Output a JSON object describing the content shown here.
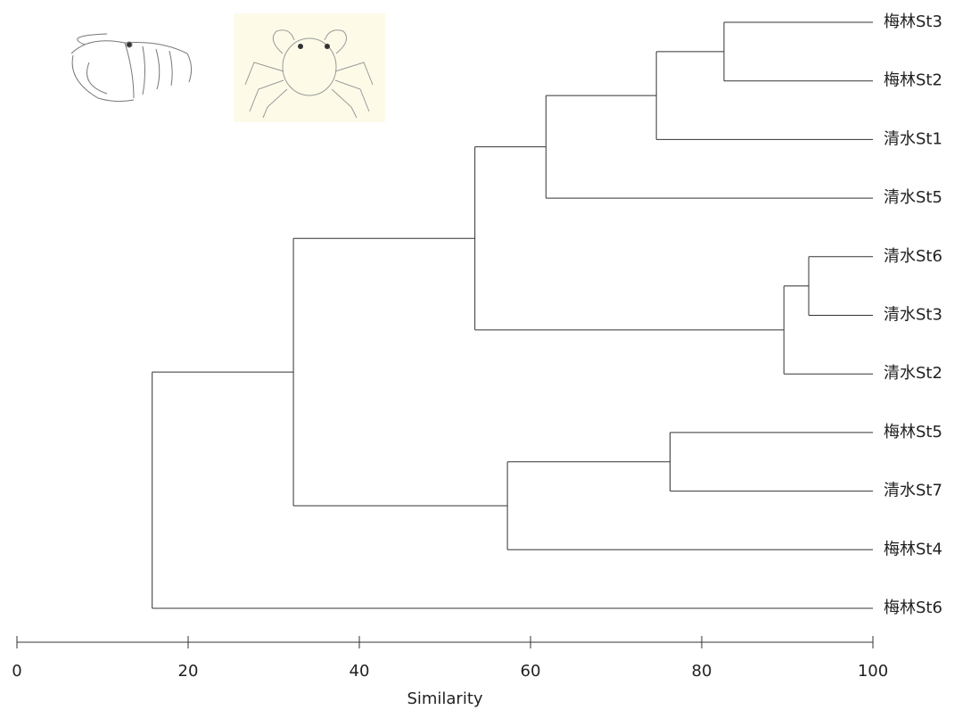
{
  "chart_data": {
    "type": "dendrogram",
    "xlabel": "Similarity",
    "xlim": [
      0,
      100
    ],
    "xticks": [
      0,
      20,
      40,
      60,
      80,
      100
    ],
    "tree": {
      "value": 15.8,
      "children": [
        {
          "value": 32.3,
          "children": [
            {
              "value": 53.5,
              "children": [
                {
                  "value": 61.8,
                  "children": [
                    {
                      "value": 74.7,
                      "children": [
                        {
                          "value": 82.6,
                          "children": [
                            {
                              "label": "梅林St3"
                            },
                            {
                              "label": "梅林St2"
                            }
                          ]
                        },
                        {
                          "label": "清水St1"
                        }
                      ]
                    },
                    {
                      "label": "清水St5"
                    }
                  ]
                },
                {
                  "value": 89.6,
                  "children": [
                    {
                      "value": 92.5,
                      "children": [
                        {
                          "label": "清水St6"
                        },
                        {
                          "label": "清水St3"
                        }
                      ]
                    },
                    {
                      "label": "清水St2"
                    }
                  ]
                }
              ]
            },
            {
              "value": 57.3,
              "children": [
                {
                  "value": 76.3,
                  "children": [
                    {
                      "label": "梅林St5"
                    },
                    {
                      "label": "清水St7"
                    }
                  ]
                },
                {
                  "label": "梅林St4"
                }
              ]
            }
          ]
        },
        {
          "label": "梅林St6"
        }
      ]
    }
  }
}
